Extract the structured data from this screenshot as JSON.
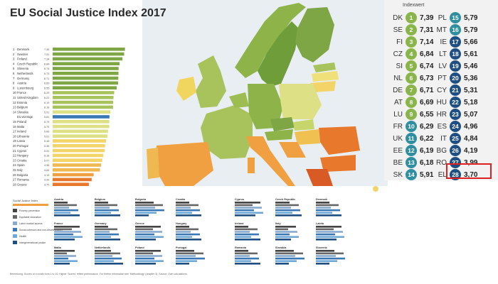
{
  "title": "EU Social Justice Index 2017",
  "footnote": "Bemerkung: Scores on a scale from 1 to 10. Higher 'Scores' reflect performance. For further information see 'Methodology' (chapter 3). Source: Own calculations.",
  "panel_header": "Indexwert",
  "colors": {
    "map_greens": [
      "#6e9d3a",
      "#8db349",
      "#a8c35b",
      "#c6d66b",
      "#dde084"
    ],
    "map_yellows": [
      "#f0e07a",
      "#f2c85c"
    ],
    "map_oranges": [
      "#f0a040",
      "#e8782c",
      "#d85a24"
    ],
    "rank_circle_green": "#8ab54a",
    "rank_circle_teal": "#2f8fa0",
    "rank_circle_blue": "#1f4f82",
    "highlight": "#e02020"
  },
  "chart_data": [
    {
      "type": "bar",
      "title": "",
      "categories": [
        "Denmark",
        "Sweden",
        "Finland",
        "Czech Republic",
        "Slovenia",
        "Netherlands",
        "Germany",
        "Austria",
        "Luxembourg",
        "France",
        "United Kingdom",
        "Estonia",
        "Belgium",
        "Slovakia",
        "EU average",
        "Poland",
        "Malta",
        "Ireland",
        "Lithuania",
        "Latvia",
        "Portugal",
        "Cyprus",
        "Hungary",
        "Croatia",
        "Spain",
        "Italy",
        "Bulgaria",
        "Romania",
        "Greece"
      ],
      "values": [
        7.39,
        7.31,
        7.14,
        6.84,
        6.74,
        6.73,
        6.71,
        6.69,
        6.55,
        6.29,
        6.22,
        6.19,
        6.18,
        5.91,
        5.81,
        5.79,
        5.79,
        5.66,
        5.61,
        5.46,
        5.36,
        5.31,
        5.18,
        5.07,
        4.96,
        4.84,
        4.19,
        3.99,
        3.7
      ],
      "value_labels": [
        "7.39",
        "7.31",
        "7.14",
        "6.84",
        "6.74",
        "6.73",
        "6.71",
        "6.69",
        "6.55",
        "6.29",
        "6.22",
        "6.19",
        "6.18",
        "5.91",
        "5.81",
        "5.79",
        "5.79",
        "5.66",
        "5.61",
        "5.46",
        "5.36",
        "5.31",
        "5.18",
        "5.07",
        "4.96",
        "4.84",
        "4.19",
        "3.99",
        "3.70"
      ],
      "xlim": [
        0,
        8
      ]
    },
    {
      "type": "table",
      "header": "Indexwert",
      "left_column": [
        {
          "code": "DK",
          "rank": 1,
          "score": "7,39"
        },
        {
          "code": "SE",
          "rank": 2,
          "score": "7,31"
        },
        {
          "code": "FI",
          "rank": 3,
          "score": "7,14"
        },
        {
          "code": "CZ",
          "rank": 4,
          "score": "6,84"
        },
        {
          "code": "SI",
          "rank": 5,
          "score": "6,74"
        },
        {
          "code": "NL",
          "rank": 6,
          "score": "6,73"
        },
        {
          "code": "DE",
          "rank": 7,
          "score": "6,71"
        },
        {
          "code": "AT",
          "rank": 8,
          "score": "6,69"
        },
        {
          "code": "LU",
          "rank": 9,
          "score": "6,55"
        },
        {
          "code": "FR",
          "rank": 10,
          "score": "6,29"
        },
        {
          "code": "UK",
          "rank": 11,
          "score": "6,22"
        },
        {
          "code": "EE",
          "rank": 12,
          "score": "6,19"
        },
        {
          "code": "BE",
          "rank": 13,
          "score": "6,18"
        },
        {
          "code": "SK",
          "rank": 14,
          "score": "5,91"
        }
      ],
      "right_column": [
        {
          "code": "PL",
          "rank": 15,
          "score": "5,79"
        },
        {
          "code": "MT",
          "rank": 16,
          "score": "5,79"
        },
        {
          "code": "IE",
          "rank": 17,
          "score": "5,66"
        },
        {
          "code": "LT",
          "rank": 18,
          "score": "5,61"
        },
        {
          "code": "LV",
          "rank": 19,
          "score": "5,46"
        },
        {
          "code": "PT",
          "rank": 20,
          "score": "5,36"
        },
        {
          "code": "CY",
          "rank": 21,
          "score": "5,31"
        },
        {
          "code": "HU",
          "rank": 22,
          "score": "5,18"
        },
        {
          "code": "HR",
          "rank": 23,
          "score": "5,07"
        },
        {
          "code": "ES",
          "rank": 24,
          "score": "4,96"
        },
        {
          "code": "IT",
          "rank": 25,
          "score": "4,84"
        },
        {
          "code": "BG",
          "rank": 26,
          "score": "4,19"
        },
        {
          "code": "RO",
          "rank": 27,
          "score": "3,99"
        },
        {
          "code": "EL",
          "rank": 28,
          "score": "3,70"
        }
      ]
    }
  ],
  "legend_items": [
    "Poverty prevention",
    "Equitable education",
    "Labor market access",
    "Social cohesion and non-discrimination",
    "Health",
    "Intergenerational justice"
  ],
  "mini_countries": [
    "Austria",
    "Belgium",
    "Bulgaria",
    "Croatia",
    "Cyprus",
    "Czech Republic",
    "Denmark",
    "Estonia",
    "Finland",
    "France",
    "Germany",
    "Greece",
    "Hungary",
    "Ireland",
    "Italy",
    "Latvia",
    "Lithuania",
    "Luxembourg",
    "Malta",
    "Netherlands",
    "Poland",
    "Portugal",
    "Romania",
    "Slovakia",
    "Slovenia",
    "Spain",
    "Sweden",
    "United Kingdom"
  ]
}
